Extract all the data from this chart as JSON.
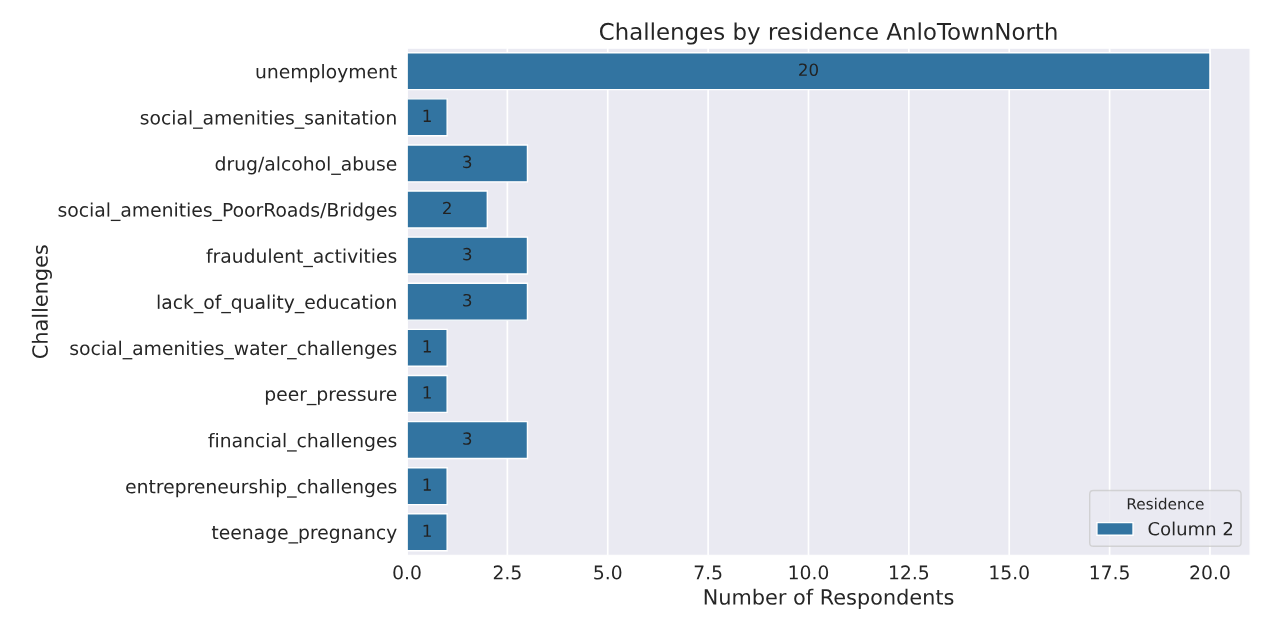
{
  "chart_data": {
    "type": "bar",
    "orientation": "horizontal",
    "title": "Challenges by residence AnloTownNorth",
    "xlabel": "Number of Respondents",
    "ylabel": "Challenges",
    "legend_title": "Residence",
    "categories": [
      "unemployment",
      "social_amenities_sanitation",
      "drug/alcohol_abuse",
      "social_amenities_PoorRoads/Bridges",
      "fraudulent_activities",
      "lack_of_quality_education",
      "social_amenities_water_challenges",
      "peer_pressure",
      "financial_challenges",
      "entrepreneurship_challenges",
      "teenage_pregnancy"
    ],
    "series": [
      {
        "name": "Column 2",
        "color": "#3274a1",
        "values": [
          20,
          1,
          3,
          2,
          3,
          3,
          1,
          1,
          3,
          1,
          1
        ]
      }
    ],
    "xlim": [
      0,
      21
    ],
    "xticks": [
      {
        "value": 0,
        "label": "0.0"
      },
      {
        "value": 2.5,
        "label": "2.5"
      },
      {
        "value": 5,
        "label": "5.0"
      },
      {
        "value": 7.5,
        "label": "7.5"
      },
      {
        "value": 10,
        "label": "10.0"
      },
      {
        "value": 12.5,
        "label": "12.5"
      },
      {
        "value": 15,
        "label": "15.0"
      },
      {
        "value": 17.5,
        "label": "17.5"
      },
      {
        "value": 20,
        "label": "20.0"
      }
    ],
    "grid": "x",
    "legend": "bottom right",
    "data_labels": true
  }
}
